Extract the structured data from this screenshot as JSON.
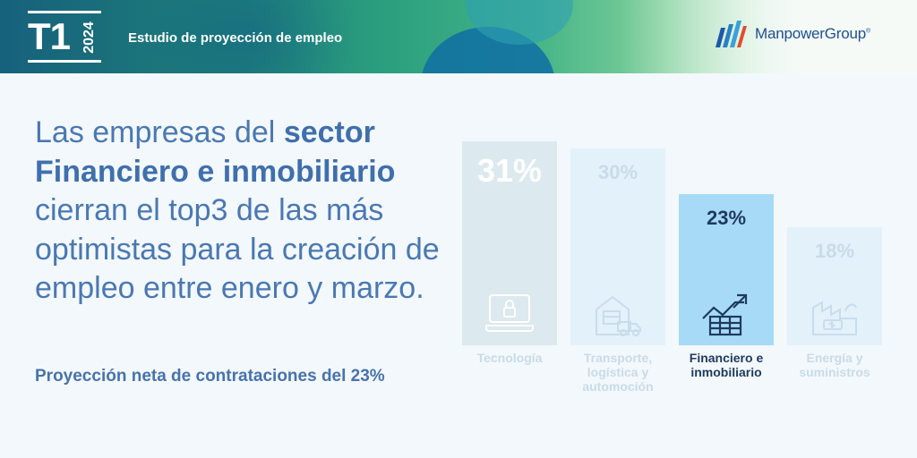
{
  "header": {
    "quarter": "T1",
    "year": "2024",
    "study_title": "Estudio de proyección de empleo",
    "logo_text": "ManpowerGroup",
    "logo_mark": "®"
  },
  "headline": {
    "part1": "Las empresas del ",
    "bold1": "sector",
    "bold2": "Financiero e inmobiliario",
    "part2": " cierran el top3 de las más optimistas para la creación de empleo entre enero y marzo."
  },
  "subheadline": "Proyección neta de contrataciones del 23%",
  "chart_data": {
    "type": "bar",
    "categories": [
      "Tecnología",
      "Transporte, logística y automoción",
      "Financiero e inmobiliario",
      "Energía y suministros"
    ],
    "values": [
      31,
      30,
      23,
      18
    ],
    "value_labels": [
      "31%",
      "30%",
      "23%",
      "18%"
    ],
    "highlighted": "Financiero e inmobiliario",
    "icons": [
      "laptop-lock-icon",
      "warehouse-truck-icon",
      "chart-growth-icon",
      "factory-energy-icon"
    ],
    "colors": {
      "tecnologia_bar": "#dce9ef",
      "other_bar": "#e3f1fb",
      "highlight_bar": "#a7daf6",
      "highlight_text": "#1e3a5f",
      "faded_text": "#c8dbe8"
    }
  }
}
